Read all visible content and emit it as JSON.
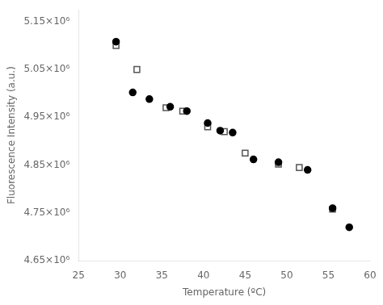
{
  "chart_data": {
    "type": "scatter",
    "xlabel": "Temperature (ºC)",
    "ylabel": "Fluorescence Intensity (a.u.)",
    "xlim": [
      25,
      60
    ],
    "ylim": [
      4650000.0,
      5175000.0
    ],
    "xticks": [
      25,
      30,
      35,
      40,
      45,
      50,
      55,
      60
    ],
    "yticks": [
      {
        "value": 4650000.0,
        "label": "4.65×10⁶"
      },
      {
        "value": 4750000.0,
        "label": "4.75×10⁶"
      },
      {
        "value": 4850000.0,
        "label": "4.85×10⁶"
      },
      {
        "value": 4950000.0,
        "label": "4.95×10⁶"
      },
      {
        "value": 5050000.0,
        "label": "5.05×10⁶"
      },
      {
        "value": 5150000.0,
        "label": "5.15×10⁶"
      }
    ],
    "grid": false,
    "series": [
      {
        "color": "#555555",
        "marker": "open-square",
        "x": [
          29.5,
          32.0,
          35.5,
          37.5,
          40.5,
          42.5,
          45.0,
          49.0,
          51.5,
          55.5
        ],
        "values": [
          5100000.0,
          5050000.0,
          4970000.0,
          4963000.0,
          4930000.0,
          4920000.0,
          4875000.0,
          4852000.0,
          4845000.0,
          4758000.0
        ]
      },
      {
        "color": "#000000",
        "marker": "circle",
        "x": [
          29.5,
          31.5,
          33.5,
          36.0,
          38.0,
          40.5,
          42.0,
          43.5,
          46.0,
          49.0,
          52.5,
          55.5,
          57.5
        ],
        "values": [
          5108000.0,
          5002000.0,
          4988000.0,
          4972000.0,
          4963000.0,
          4938000.0,
          4922000.0,
          4918000.0,
          4862000.0,
          4856000.0,
          4840000.0,
          4760000.0,
          4720000.0
        ]
      }
    ]
  }
}
